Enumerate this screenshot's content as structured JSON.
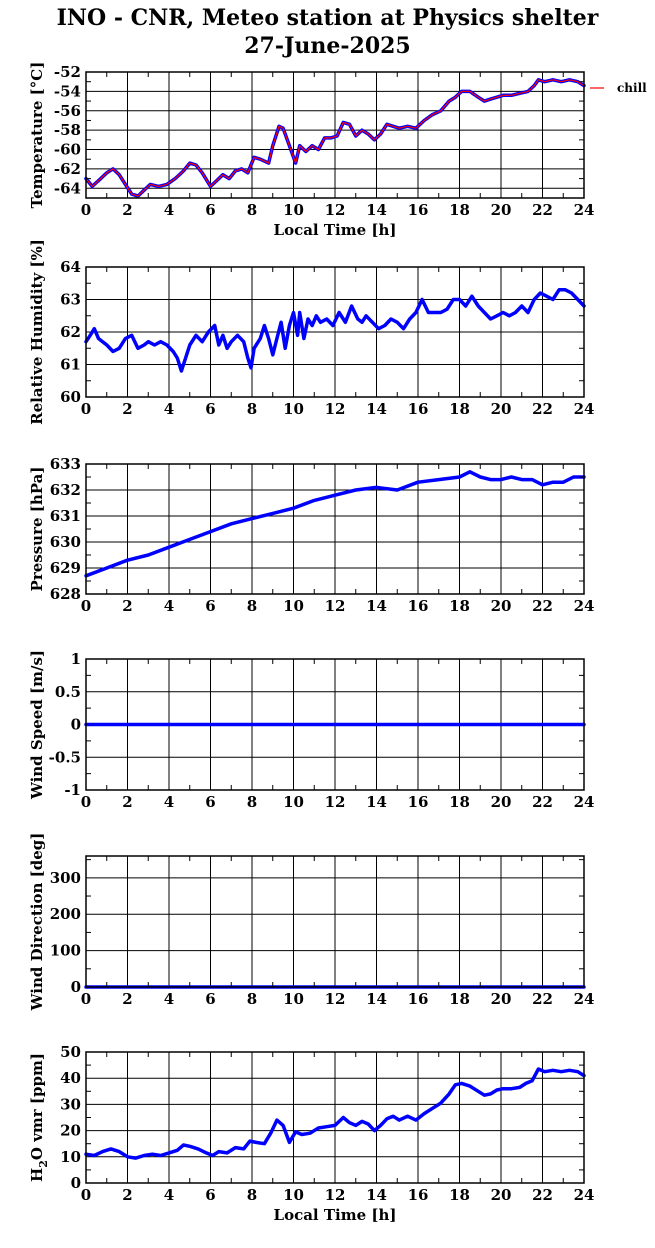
{
  "header": {
    "title_line1": "INO - CNR, Meteo station at Physics shelter",
    "title_line2": "27-June-2025"
  },
  "colors": {
    "series": "#0000ff",
    "chill": "#ff0000",
    "grid": "#000000"
  },
  "chart_data": [
    {
      "type": "line",
      "ylabel": "Temperature [°C]",
      "xlabel": "Local Time [h]",
      "xlim": [
        0,
        24
      ],
      "ylim": [
        -65,
        -52
      ],
      "yticks": [
        -52,
        -54,
        -56,
        -58,
        -60,
        -62,
        -64
      ],
      "xticks": [
        0,
        2,
        4,
        6,
        8,
        10,
        12,
        14,
        16,
        18,
        20,
        22,
        24
      ],
      "legend": {
        "entries": [
          "chill"
        ],
        "placement": "top-right outside"
      },
      "series": [
        {
          "name": "temperature",
          "x": [
            0,
            0.3,
            0.6,
            1.0,
            1.3,
            1.6,
            1.9,
            2.2,
            2.5,
            2.8,
            3.1,
            3.5,
            3.9,
            4.3,
            4.7,
            5.0,
            5.3,
            5.6,
            6.0,
            6.3,
            6.6,
            6.9,
            7.2,
            7.5,
            7.8,
            8.1,
            8.4,
            8.8,
            9.0,
            9.3,
            9.5,
            9.8,
            10.1,
            10.3,
            10.6,
            10.9,
            11.2,
            11.5,
            11.8,
            12.1,
            12.4,
            12.7,
            13.0,
            13.3,
            13.6,
            13.9,
            14.2,
            14.5,
            14.8,
            15.1,
            15.5,
            15.9,
            16.3,
            16.7,
            17.1,
            17.5,
            17.8,
            18.1,
            18.5,
            18.9,
            19.2,
            19.5,
            19.8,
            20.1,
            20.5,
            20.9,
            21.3,
            21.6,
            21.8,
            22.1,
            22.5,
            22.9,
            23.3,
            23.7,
            24.0
          ],
          "values": [
            -63.0,
            -63.8,
            -63.2,
            -62.4,
            -62.0,
            -62.6,
            -63.6,
            -64.6,
            -64.8,
            -64.2,
            -63.6,
            -63.8,
            -63.6,
            -63.0,
            -62.2,
            -61.4,
            -61.6,
            -62.4,
            -63.8,
            -63.2,
            -62.6,
            -63.0,
            -62.2,
            -62.0,
            -62.4,
            -60.8,
            -61.0,
            -61.4,
            -59.6,
            -57.6,
            -57.8,
            -59.6,
            -61.4,
            -59.6,
            -60.2,
            -59.6,
            -60.0,
            -58.8,
            -58.8,
            -58.6,
            -57.2,
            -57.4,
            -58.6,
            -58.0,
            -58.4,
            -59.0,
            -58.4,
            -57.4,
            -57.6,
            -57.8,
            -57.6,
            -57.8,
            -57.0,
            -56.4,
            -56.0,
            -55.0,
            -54.6,
            -54.0,
            -54.0,
            -54.6,
            -55.0,
            -54.8,
            -54.6,
            -54.4,
            -54.4,
            -54.2,
            -54.0,
            -53.4,
            -52.8,
            -53.0,
            -52.8,
            -53.0,
            -52.8,
            -53.0,
            -53.4
          ]
        },
        {
          "name": "chill",
          "x": [
            0,
            0.3,
            0.6,
            1.0,
            1.3,
            1.6,
            1.9,
            2.2,
            2.5,
            2.8,
            3.1,
            3.5,
            3.9,
            4.3,
            4.7,
            5.0,
            5.3,
            5.6,
            6.0,
            6.3,
            6.6,
            6.9,
            7.2,
            7.5,
            7.8,
            8.1,
            8.4,
            8.8,
            9.0,
            9.3,
            9.5,
            9.8,
            10.1,
            10.3,
            10.6,
            10.9,
            11.2,
            11.5,
            11.8,
            12.1,
            12.4,
            12.7,
            13.0,
            13.3,
            13.6,
            13.9,
            14.2,
            14.5,
            14.8,
            15.1,
            15.5,
            15.9,
            16.3,
            16.7,
            17.1,
            17.5,
            17.8,
            18.1,
            18.5,
            18.9,
            19.2,
            19.5,
            19.8,
            20.1,
            20.5,
            20.9,
            21.3,
            21.6,
            21.8,
            22.1,
            22.5,
            22.9,
            23.3,
            23.7,
            24.0
          ],
          "values": [
            -63.0,
            -63.8,
            -63.2,
            -62.4,
            -62.0,
            -62.6,
            -63.6,
            -64.6,
            -64.8,
            -64.2,
            -63.6,
            -63.8,
            -63.6,
            -63.0,
            -62.2,
            -61.4,
            -61.6,
            -62.4,
            -63.8,
            -63.2,
            -62.6,
            -63.0,
            -62.2,
            -62.0,
            -62.4,
            -60.8,
            -61.0,
            -61.4,
            -59.6,
            -57.6,
            -57.8,
            -59.6,
            -61.4,
            -59.6,
            -60.2,
            -59.6,
            -60.0,
            -58.8,
            -58.8,
            -58.6,
            -57.2,
            -57.4,
            -58.6,
            -58.0,
            -58.4,
            -59.0,
            -58.4,
            -57.4,
            -57.6,
            -57.8,
            -57.6,
            -57.8,
            -57.0,
            -56.4,
            -56.0,
            -55.0,
            -54.6,
            -54.0,
            -54.0,
            -54.6,
            -55.0,
            -54.8,
            -54.6,
            -54.4,
            -54.4,
            -54.2,
            -54.0,
            -53.4,
            -52.8,
            -53.0,
            -52.8,
            -53.0,
            -52.8,
            -53.0,
            -53.4
          ]
        }
      ]
    },
    {
      "type": "line",
      "ylabel": "Relative Humidity [%]",
      "xlabel": "",
      "xlim": [
        0,
        24
      ],
      "ylim": [
        60,
        64
      ],
      "yticks": [
        60,
        61,
        62,
        63,
        64
      ],
      "xticks": [
        0,
        2,
        4,
        6,
        8,
        10,
        12,
        14,
        16,
        18,
        20,
        22,
        24
      ],
      "series": [
        {
          "name": "humidity",
          "x": [
            0,
            0.2,
            0.4,
            0.6,
            0.8,
            1.0,
            1.3,
            1.6,
            1.9,
            2.2,
            2.5,
            2.8,
            3.0,
            3.3,
            3.6,
            3.9,
            4.2,
            4.4,
            4.6,
            4.8,
            5.0,
            5.3,
            5.6,
            5.9,
            6.2,
            6.4,
            6.6,
            6.8,
            7.0,
            7.3,
            7.6,
            7.8,
            7.95,
            8.1,
            8.4,
            8.6,
            8.8,
            9.0,
            9.2,
            9.4,
            9.6,
            9.8,
            10.0,
            10.2,
            10.3,
            10.5,
            10.7,
            10.9,
            11.1,
            11.3,
            11.6,
            11.9,
            12.2,
            12.5,
            12.8,
            13.1,
            13.3,
            13.5,
            13.8,
            14.1,
            14.4,
            14.7,
            15.0,
            15.3,
            15.6,
            15.9,
            16.2,
            16.5,
            16.8,
            17.1,
            17.4,
            17.7,
            18.0,
            18.3,
            18.6,
            18.9,
            19.2,
            19.5,
            19.8,
            20.1,
            20.4,
            20.7,
            21.0,
            21.3,
            21.6,
            21.9,
            22.2,
            22.5,
            22.8,
            23.1,
            23.4,
            23.7,
            24.0
          ],
          "values": [
            61.7,
            61.9,
            62.1,
            61.8,
            61.7,
            61.6,
            61.4,
            61.5,
            61.8,
            61.9,
            61.5,
            61.6,
            61.7,
            61.6,
            61.7,
            61.6,
            61.4,
            61.2,
            60.8,
            61.2,
            61.6,
            61.9,
            61.7,
            62.0,
            62.2,
            61.6,
            61.9,
            61.5,
            61.7,
            61.9,
            61.7,
            61.2,
            60.9,
            61.5,
            61.8,
            62.2,
            61.8,
            61.3,
            61.8,
            62.3,
            61.5,
            62.2,
            62.6,
            61.9,
            62.6,
            61.8,
            62.4,
            62.2,
            62.5,
            62.3,
            62.4,
            62.2,
            62.6,
            62.3,
            62.8,
            62.4,
            62.3,
            62.5,
            62.3,
            62.1,
            62.2,
            62.4,
            62.3,
            62.1,
            62.4,
            62.6,
            63.0,
            62.6,
            62.6,
            62.6,
            62.7,
            63.0,
            63.0,
            62.8,
            63.1,
            62.8,
            62.6,
            62.4,
            62.5,
            62.6,
            62.5,
            62.6,
            62.8,
            62.6,
            63.0,
            63.2,
            63.1,
            63.0,
            63.3,
            63.3,
            63.2,
            63.0,
            62.8
          ]
        }
      ]
    },
    {
      "type": "line",
      "ylabel": "Pressure [hPa]",
      "xlabel": "",
      "xlim": [
        0,
        24
      ],
      "ylim": [
        628,
        633
      ],
      "yticks": [
        628,
        629,
        630,
        631,
        632,
        633
      ],
      "xticks": [
        0,
        2,
        4,
        6,
        8,
        10,
        12,
        14,
        16,
        18,
        20,
        22,
        24
      ],
      "series": [
        {
          "name": "pressure",
          "x": [
            0,
            1,
            2,
            3,
            4,
            5,
            6,
            7,
            8,
            9,
            10,
            11,
            12,
            13,
            14,
            15,
            16,
            17,
            18,
            18.5,
            19,
            19.5,
            20,
            20.5,
            21,
            21.5,
            22,
            22.5,
            23,
            23.5,
            24
          ],
          "values": [
            628.7,
            629.0,
            629.3,
            629.5,
            629.8,
            630.1,
            630.4,
            630.7,
            630.9,
            631.1,
            631.3,
            631.6,
            631.8,
            632.0,
            632.1,
            632.0,
            632.3,
            632.4,
            632.5,
            632.7,
            632.5,
            632.4,
            632.4,
            632.5,
            632.4,
            632.4,
            632.2,
            632.3,
            632.3,
            632.5,
            632.5
          ]
        }
      ]
    },
    {
      "type": "line",
      "ylabel": "Wind Speed [m/s]",
      "xlabel": "",
      "xlim": [
        0,
        24
      ],
      "ylim": [
        -1,
        1
      ],
      "yticks": [
        -1,
        -0.5,
        0,
        0.5,
        1
      ],
      "xticks": [
        0,
        2,
        4,
        6,
        8,
        10,
        12,
        14,
        16,
        18,
        20,
        22,
        24
      ],
      "series": [
        {
          "name": "wind speed",
          "x": [
            0,
            24
          ],
          "values": [
            0,
            0
          ]
        }
      ]
    },
    {
      "type": "line",
      "ylabel": "Wind Direction [deg]",
      "xlabel": "",
      "xlim": [
        0,
        24
      ],
      "ylim": [
        0,
        360
      ],
      "yticks": [
        0,
        100,
        200,
        300
      ],
      "xticks": [
        0,
        2,
        4,
        6,
        8,
        10,
        12,
        14,
        16,
        18,
        20,
        22,
        24
      ],
      "series": [
        {
          "name": "wind direction",
          "x": [
            0,
            24
          ],
          "values": [
            0,
            0
          ]
        }
      ]
    },
    {
      "type": "line",
      "ylabel": "H2O vmr [ppm]",
      "xlabel": "Local Time [h]",
      "xlim": [
        0,
        24
      ],
      "ylim": [
        0,
        50
      ],
      "yticks": [
        0,
        10,
        20,
        30,
        40,
        50
      ],
      "xticks": [
        0,
        2,
        4,
        6,
        8,
        10,
        12,
        14,
        16,
        18,
        20,
        22,
        24
      ],
      "series": [
        {
          "name": "h2o",
          "x": [
            0,
            0.4,
            0.8,
            1.2,
            1.6,
            2.0,
            2.4,
            2.8,
            3.2,
            3.6,
            4.0,
            4.4,
            4.7,
            5.0,
            5.4,
            5.8,
            6.1,
            6.4,
            6.8,
            7.2,
            7.6,
            7.9,
            8.2,
            8.6,
            8.9,
            9.2,
            9.5,
            9.8,
            10.1,
            10.4,
            10.8,
            11.2,
            11.6,
            12.0,
            12.4,
            12.7,
            13.0,
            13.3,
            13.6,
            13.9,
            14.2,
            14.5,
            14.8,
            15.1,
            15.5,
            15.9,
            16.3,
            16.7,
            17.1,
            17.5,
            17.8,
            18.1,
            18.5,
            18.9,
            19.2,
            19.5,
            19.8,
            20.1,
            20.5,
            20.9,
            21.2,
            21.5,
            21.8,
            22.1,
            22.5,
            22.9,
            23.3,
            23.7,
            24.0
          ],
          "values": [
            11.0,
            10.5,
            12.0,
            13.0,
            12.0,
            10.0,
            9.5,
            10.5,
            11.0,
            10.5,
            11.5,
            12.5,
            14.5,
            14.0,
            13.0,
            11.5,
            10.5,
            12.0,
            11.5,
            13.5,
            13.0,
            16.0,
            15.5,
            15.0,
            19.0,
            24.0,
            22.0,
            15.5,
            19.5,
            18.5,
            19.0,
            21.0,
            21.5,
            22.0,
            25.0,
            23.0,
            22.0,
            23.5,
            22.5,
            20.0,
            22.0,
            24.5,
            25.5,
            24.0,
            25.5,
            24.0,
            26.5,
            28.5,
            30.5,
            34.0,
            37.5,
            38.0,
            37.0,
            35.0,
            33.5,
            34.0,
            35.5,
            36.0,
            36.0,
            36.5,
            38.0,
            39.0,
            43.5,
            42.5,
            43.0,
            42.5,
            43.0,
            42.5,
            41.0
          ]
        }
      ]
    }
  ]
}
